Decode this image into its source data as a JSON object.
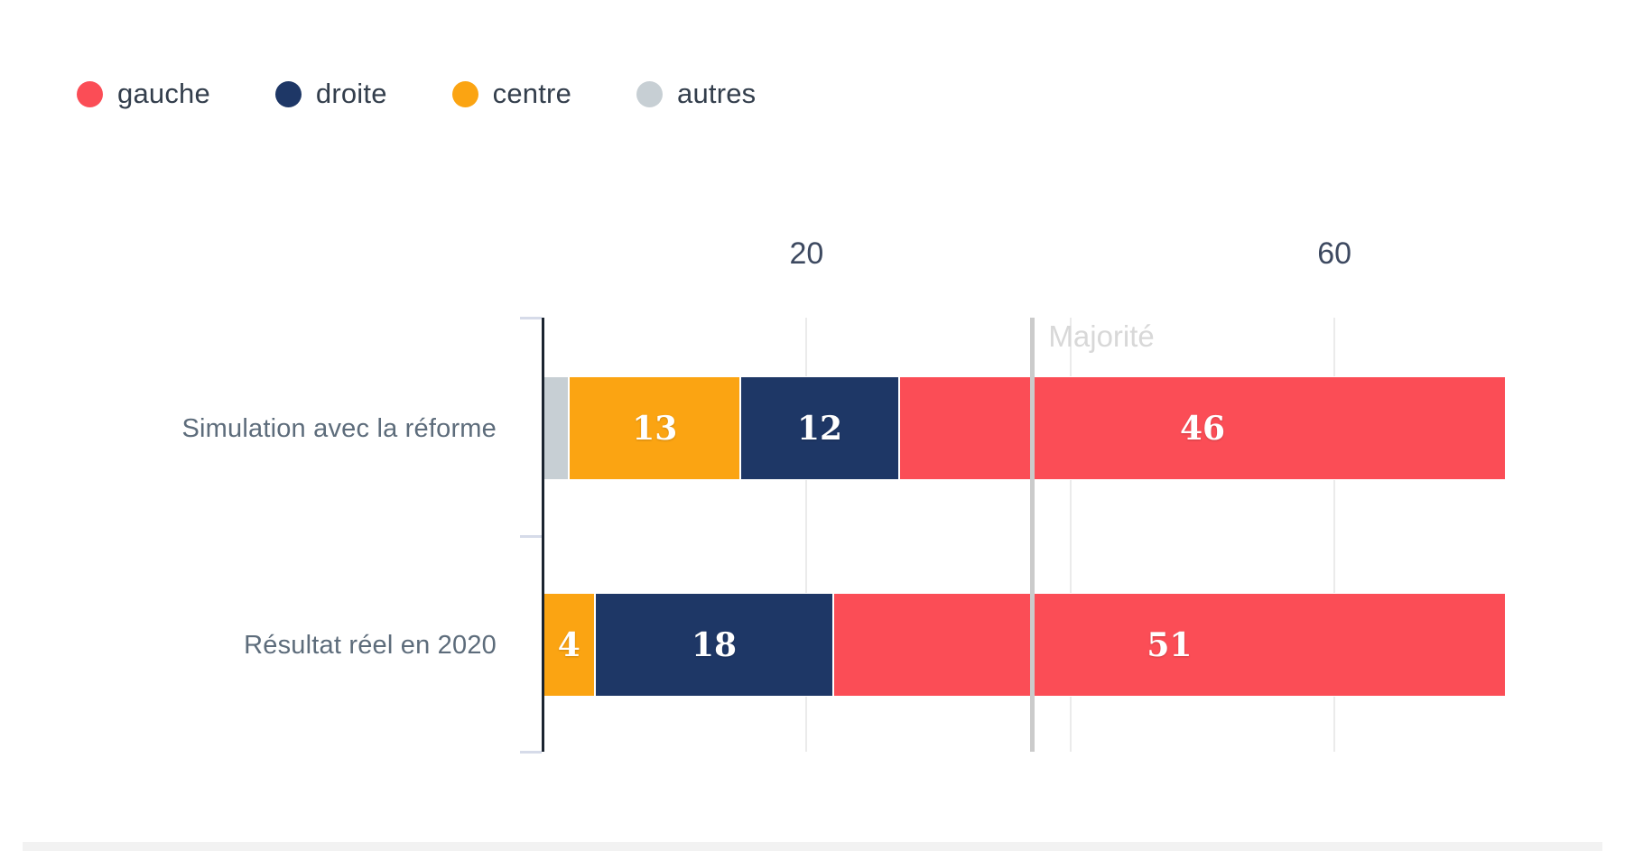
{
  "legend": {
    "items": [
      {
        "label": "gauche",
        "color": "#fb4d56"
      },
      {
        "label": "droite",
        "color": "#1e3766"
      },
      {
        "label": "centre",
        "color": "#fba412"
      },
      {
        "label": "autres",
        "color": "#c7cfd4"
      }
    ]
  },
  "chart_data": {
    "type": "bar",
    "orientation": "horizontal",
    "stacked": true,
    "title": "",
    "xlabel": "",
    "ylabel": "",
    "xlim": [
      0,
      80
    ],
    "grid": true,
    "legend_position": "top-left",
    "categories": [
      "Simulation avec la réforme",
      "Résultat réel en 2020"
    ],
    "series": [
      {
        "name": "autres",
        "color": "#c7cfd4",
        "values": [
          2,
          0
        ]
      },
      {
        "name": "centre",
        "color": "#fba412",
        "values": [
          13,
          4
        ]
      },
      {
        "name": "droite",
        "color": "#1e3766",
        "values": [
          12,
          18
        ]
      },
      {
        "name": "gauche",
        "color": "#fb4d56",
        "values": [
          46,
          51
        ]
      }
    ],
    "bar_value_labels": [
      [
        "",
        "13",
        "12",
        "46"
      ],
      [
        "",
        "4",
        "18",
        "51"
      ]
    ],
    "totals": [
      73,
      73
    ],
    "x_ticks": [
      {
        "value": 20,
        "label": "20"
      },
      {
        "value": 40,
        "label": ""
      },
      {
        "value": 60,
        "label": "60"
      }
    ],
    "annotation_line": {
      "value": 37.1,
      "label": "Majorité"
    }
  }
}
